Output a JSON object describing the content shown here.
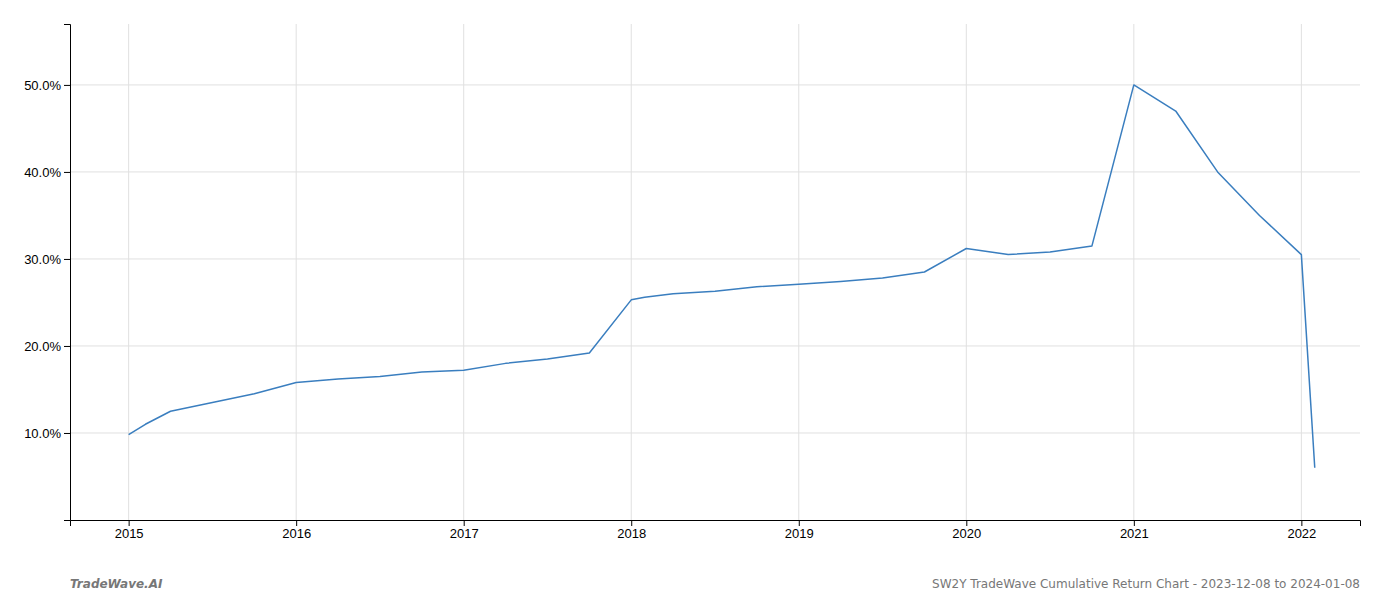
{
  "chart_data": {
    "type": "line",
    "x": [
      2015.0,
      2015.1,
      2015.25,
      2015.5,
      2015.75,
      2016.0,
      2016.25,
      2016.5,
      2016.75,
      2017.0,
      2017.25,
      2017.5,
      2017.75,
      2018.0,
      2018.08,
      2018.25,
      2018.5,
      2018.75,
      2019.0,
      2019.25,
      2019.5,
      2019.75,
      2020.0,
      2020.25,
      2020.5,
      2020.75,
      2021.0,
      2021.25,
      2021.5,
      2021.75,
      2022.0,
      2022.08
    ],
    "values": [
      9.8,
      11.0,
      12.5,
      13.5,
      14.5,
      15.8,
      16.2,
      16.5,
      17.0,
      17.2,
      18.0,
      18.5,
      19.2,
      25.3,
      25.6,
      26.0,
      26.3,
      26.8,
      27.1,
      27.4,
      27.8,
      28.5,
      31.2,
      30.5,
      30.8,
      31.5,
      50.0,
      47.0,
      40.0,
      35.0,
      30.5,
      6.0
    ],
    "color": "#3a7ebf",
    "xlim": [
      2014.65,
      2022.35
    ],
    "ylim": [
      0,
      57
    ],
    "xticks": [
      2015,
      2016,
      2017,
      2018,
      2019,
      2020,
      2021,
      2022
    ],
    "yticks": [
      {
        "value": 10.0,
        "label": "10.0%"
      },
      {
        "value": 20.0,
        "label": "20.0%"
      },
      {
        "value": 30.0,
        "label": "30.0%"
      },
      {
        "value": 40.0,
        "label": "40.0%"
      },
      {
        "value": 50.0,
        "label": "50.0%"
      }
    ],
    "grid": true,
    "annotations": [
      "TradeWave.AI",
      "SW2Y TradeWave Cumulative Return Chart - 2023-12-08 to 2024-01-08"
    ]
  }
}
